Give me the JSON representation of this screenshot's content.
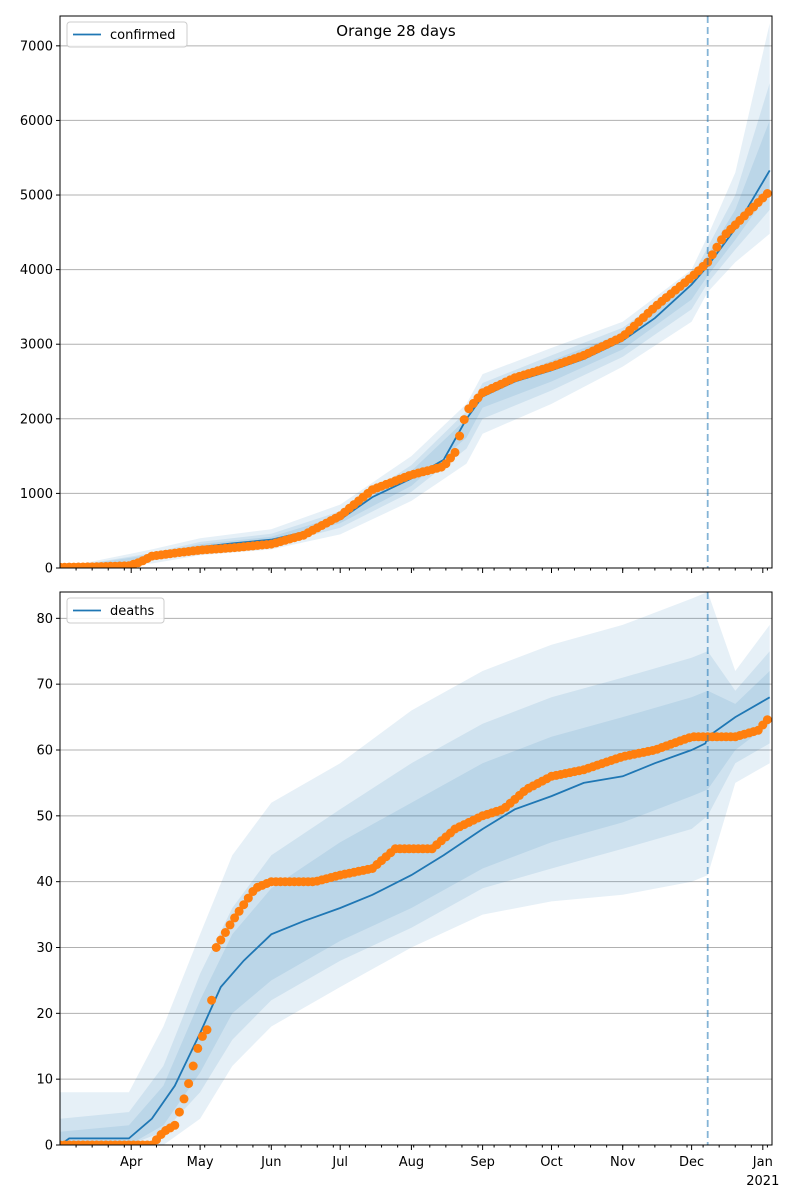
{
  "chart_data": [
    {
      "type": "line",
      "title": "Orange 28 days",
      "legend": {
        "label": "confirmed",
        "placement": "top-left"
      },
      "grid": "y",
      "ylim": [
        0,
        7400
      ],
      "yticks": [
        0,
        1000,
        2000,
        3000,
        4000,
        5000,
        6000,
        7000
      ],
      "xlim": [
        "2020-03-01",
        "2021-01-05"
      ],
      "forecast_start": "2020-12-08",
      "series": [
        {
          "name": "confirmed",
          "role": "model",
          "x": [
            "2020-03-01",
            "2020-03-20",
            "2020-04-05",
            "2020-04-10",
            "2020-04-20",
            "2020-05-01",
            "2020-05-15",
            "2020-06-01",
            "2020-06-15",
            "2020-07-01",
            "2020-07-15",
            "2020-08-01",
            "2020-08-15",
            "2020-08-25",
            "2020-09-01",
            "2020-09-15",
            "2020-10-01",
            "2020-10-15",
            "2020-11-01",
            "2020-11-15",
            "2020-12-01",
            "2020-12-08",
            "2020-12-20",
            "2021-01-04"
          ],
          "y": [
            0,
            10,
            70,
            150,
            220,
            280,
            330,
            380,
            480,
            650,
            950,
            1200,
            1450,
            2000,
            2300,
            2500,
            2650,
            2800,
            3050,
            3350,
            3800,
            4050,
            4550,
            5330
          ]
        },
        {
          "name": "observed",
          "role": "points",
          "x": [
            "2020-03-01",
            "2020-03-15",
            "2020-03-31",
            "2020-04-05",
            "2020-04-10",
            "2020-04-20",
            "2020-05-01",
            "2020-05-15",
            "2020-06-01",
            "2020-06-15",
            "2020-07-01",
            "2020-07-15",
            "2020-08-01",
            "2020-08-15",
            "2020-08-20",
            "2020-08-25",
            "2020-09-01",
            "2020-09-15",
            "2020-10-01",
            "2020-10-15",
            "2020-11-01",
            "2020-11-15",
            "2020-12-01",
            "2020-12-08",
            "2020-12-15",
            "2020-12-25",
            "2021-01-04"
          ],
          "y": [
            10,
            15,
            30,
            80,
            160,
            200,
            240,
            270,
            320,
            440,
            700,
            1050,
            1250,
            1360,
            1550,
            2100,
            2350,
            2550,
            2700,
            2850,
            3100,
            3500,
            3900,
            4100,
            4450,
            4750,
            5050
          ]
        }
      ],
      "bands": [
        {
          "x": [
            "2020-03-01",
            "2020-04-10",
            "2020-05-01",
            "2020-06-01",
            "2020-07-01",
            "2020-08-01",
            "2020-08-25",
            "2020-09-01",
            "2020-10-01",
            "2020-11-01",
            "2020-12-01",
            "2020-12-08",
            "2020-12-20",
            "2021-01-04"
          ],
          "lower": [
            0,
            60,
            170,
            250,
            450,
            900,
            1400,
            1800,
            2200,
            2700,
            3300,
            3700,
            4100,
            4480
          ],
          "upper": [
            0,
            250,
            400,
            520,
            850,
            1500,
            2200,
            2600,
            2950,
            3300,
            4000,
            4450,
            5300,
            7300
          ]
        },
        {
          "x": [
            "2020-03-01",
            "2020-04-10",
            "2020-05-01",
            "2020-06-01",
            "2020-07-01",
            "2020-08-01",
            "2020-08-25",
            "2020-09-01",
            "2020-10-01",
            "2020-11-01",
            "2020-12-01",
            "2020-12-08",
            "2020-12-20",
            "2021-01-04"
          ],
          "lower": [
            0,
            100,
            210,
            300,
            540,
            1020,
            1600,
            2000,
            2380,
            2830,
            3470,
            3820,
            4270,
            4800
          ],
          "upper": [
            0,
            200,
            350,
            460,
            760,
            1380,
            2100,
            2480,
            2850,
            3220,
            3900,
            4300,
            5000,
            6500
          ]
        },
        {
          "x": [
            "2020-03-01",
            "2020-04-10",
            "2020-05-01",
            "2020-06-01",
            "2020-07-01",
            "2020-08-01",
            "2020-08-25",
            "2020-09-01",
            "2020-10-01",
            "2020-11-01",
            "2020-12-01",
            "2020-12-08",
            "2020-12-20",
            "2021-01-04"
          ],
          "lower": [
            0,
            120,
            240,
            340,
            600,
            1100,
            1750,
            2150,
            2500,
            2930,
            3600,
            3920,
            4400,
            5050
          ],
          "upper": [
            0,
            180,
            320,
            420,
            700,
            1300,
            2000,
            2400,
            2780,
            3150,
            3850,
            4200,
            4800,
            6000
          ]
        }
      ]
    },
    {
      "type": "line",
      "legend": {
        "label": "deaths",
        "placement": "top-left"
      },
      "grid": "y",
      "ylim": [
        0,
        84
      ],
      "yticks": [
        0,
        10,
        20,
        30,
        40,
        50,
        60,
        70,
        80
      ],
      "xlim": [
        "2020-03-01",
        "2021-01-05"
      ],
      "xticks": [
        {
          "date": "2020-04-01",
          "label": "Apr"
        },
        {
          "date": "2020-05-01",
          "label": "May"
        },
        {
          "date": "2020-06-01",
          "label": "Jun"
        },
        {
          "date": "2020-07-01",
          "label": "Jul"
        },
        {
          "date": "2020-08-01",
          "label": "Aug"
        },
        {
          "date": "2020-09-01",
          "label": "Sep"
        },
        {
          "date": "2020-10-01",
          "label": "Oct"
        },
        {
          "date": "2020-11-01",
          "label": "Nov"
        },
        {
          "date": "2020-12-01",
          "label": "Dec"
        },
        {
          "date": "2021-01-01",
          "label": "Jan",
          "sublabel": "2021"
        }
      ],
      "forecast_start": "2020-12-08",
      "series": [
        {
          "name": "deaths",
          "role": "model",
          "x": [
            "2020-03-01",
            "2020-03-05",
            "2020-03-31",
            "2020-04-10",
            "2020-04-20",
            "2020-05-01",
            "2020-05-10",
            "2020-05-20",
            "2020-06-01",
            "2020-06-15",
            "2020-07-01",
            "2020-07-15",
            "2020-08-01",
            "2020-08-15",
            "2020-09-01",
            "2020-09-15",
            "2020-10-01",
            "2020-10-15",
            "2020-11-01",
            "2020-11-15",
            "2020-12-01",
            "2020-12-07",
            "2020-12-08",
            "2020-12-20",
            "2021-01-04"
          ],
          "y": [
            0,
            1,
            1,
            4,
            9,
            17,
            24,
            28,
            32,
            34,
            36,
            38,
            41,
            44,
            48,
            51,
            53,
            55,
            56,
            58,
            60,
            61,
            62,
            65,
            68
          ]
        },
        {
          "name": "observed",
          "role": "points",
          "x": [
            "2020-03-01",
            "2020-04-10",
            "2020-04-15",
            "2020-04-20",
            "2020-04-25",
            "2020-05-01",
            "2020-05-05",
            "2020-05-08",
            "2020-05-15",
            "2020-05-25",
            "2020-06-01",
            "2020-06-20",
            "2020-07-01",
            "2020-07-15",
            "2020-07-25",
            "2020-08-10",
            "2020-08-20",
            "2020-09-01",
            "2020-09-10",
            "2020-09-20",
            "2020-10-01",
            "2020-10-15",
            "2020-11-01",
            "2020-11-15",
            "2020-12-01",
            "2020-12-20",
            "2020-12-30",
            "2021-01-04"
          ],
          "y": [
            0,
            0,
            2,
            3,
            8,
            16,
            18,
            30,
            34,
            39,
            40,
            40,
            41,
            42,
            45,
            45,
            48,
            50,
            51,
            54,
            56,
            57,
            59,
            60,
            62,
            62,
            63,
            65
          ]
        }
      ],
      "bands": [
        {
          "x": [
            "2020-03-01",
            "2020-03-31",
            "2020-04-15",
            "2020-05-01",
            "2020-05-15",
            "2020-06-01",
            "2020-07-01",
            "2020-08-01",
            "2020-09-01",
            "2020-10-01",
            "2020-11-01",
            "2020-12-01",
            "2020-12-08",
            "2020-12-20",
            "2021-01-04"
          ],
          "lower": [
            0,
            0,
            0,
            4,
            12,
            18,
            24,
            30,
            35,
            37,
            38,
            40,
            41,
            55,
            58
          ],
          "upper": [
            8,
            8,
            18,
            32,
            44,
            52,
            58,
            66,
            72,
            76,
            79,
            83,
            84,
            72,
            79
          ]
        },
        {
          "x": [
            "2020-03-01",
            "2020-03-31",
            "2020-04-15",
            "2020-05-01",
            "2020-05-15",
            "2020-06-01",
            "2020-07-01",
            "2020-08-01",
            "2020-09-01",
            "2020-10-01",
            "2020-11-01",
            "2020-12-01",
            "2020-12-08",
            "2020-12-20",
            "2021-01-04"
          ],
          "lower": [
            0,
            0,
            2,
            8,
            16,
            22,
            28,
            33,
            39,
            42,
            45,
            48,
            50,
            58,
            61
          ],
          "upper": [
            4,
            5,
            12,
            26,
            36,
            44,
            51,
            58,
            64,
            68,
            71,
            74,
            75,
            69,
            75
          ]
        },
        {
          "x": [
            "2020-03-01",
            "2020-03-31",
            "2020-04-15",
            "2020-05-01",
            "2020-05-15",
            "2020-06-01",
            "2020-07-01",
            "2020-08-01",
            "2020-09-01",
            "2020-10-01",
            "2020-11-01",
            "2020-12-01",
            "2020-12-08",
            "2020-12-20",
            "2021-01-04"
          ],
          "lower": [
            0,
            0,
            3,
            11,
            20,
            25,
            31,
            36,
            42,
            46,
            49,
            53,
            54,
            60,
            64
          ],
          "upper": [
            2,
            3,
            9,
            22,
            32,
            39,
            46,
            52,
            58,
            62,
            65,
            68,
            69,
            67,
            72
          ]
        }
      ]
    }
  ],
  "colors": {
    "model_line": "#1f77b4",
    "points": "#ff7f0e",
    "band": "#1f77b4",
    "grid": "#b0b0b0",
    "forecast_line": "#1f77b4"
  }
}
